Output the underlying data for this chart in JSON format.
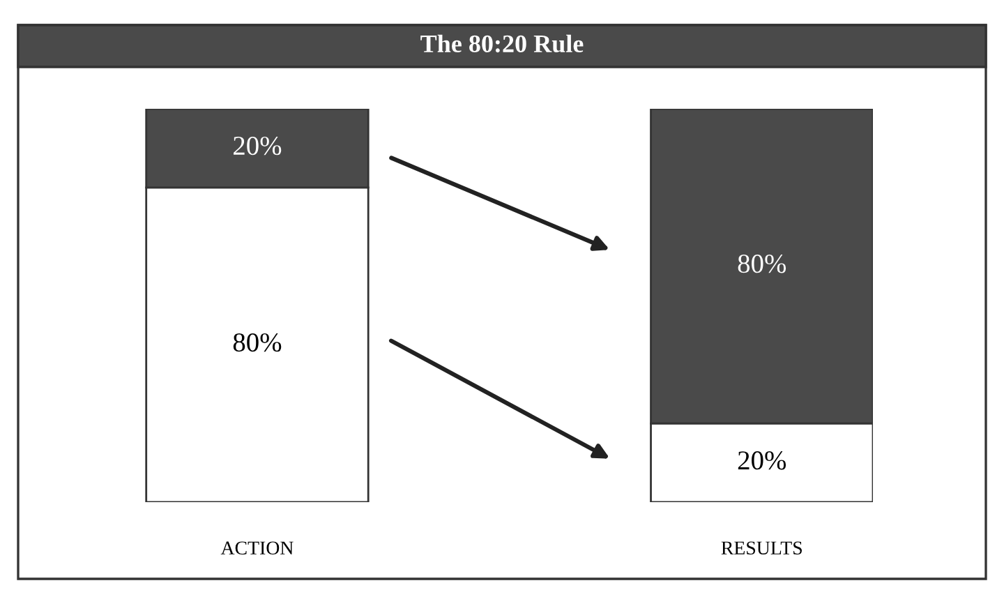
{
  "chart_data": {
    "type": "bar",
    "title": "The 80:20 Rule",
    "categories": [
      "ACTION",
      "RESULTS"
    ],
    "stacked": true,
    "tick_labels": "x",
    "legend": false,
    "grid": false,
    "series": [
      {
        "colors": [
          "#ffffff",
          "#ffffff"
        ],
        "values": [
          80,
          20
        ],
        "value_labels": [
          "80%",
          "20%"
        ]
      },
      {
        "colors": [
          "#4a4a4a",
          "#4a4a4a"
        ],
        "values": [
          20,
          80
        ],
        "value_labels": [
          "20%",
          "80%"
        ]
      }
    ]
  }
}
